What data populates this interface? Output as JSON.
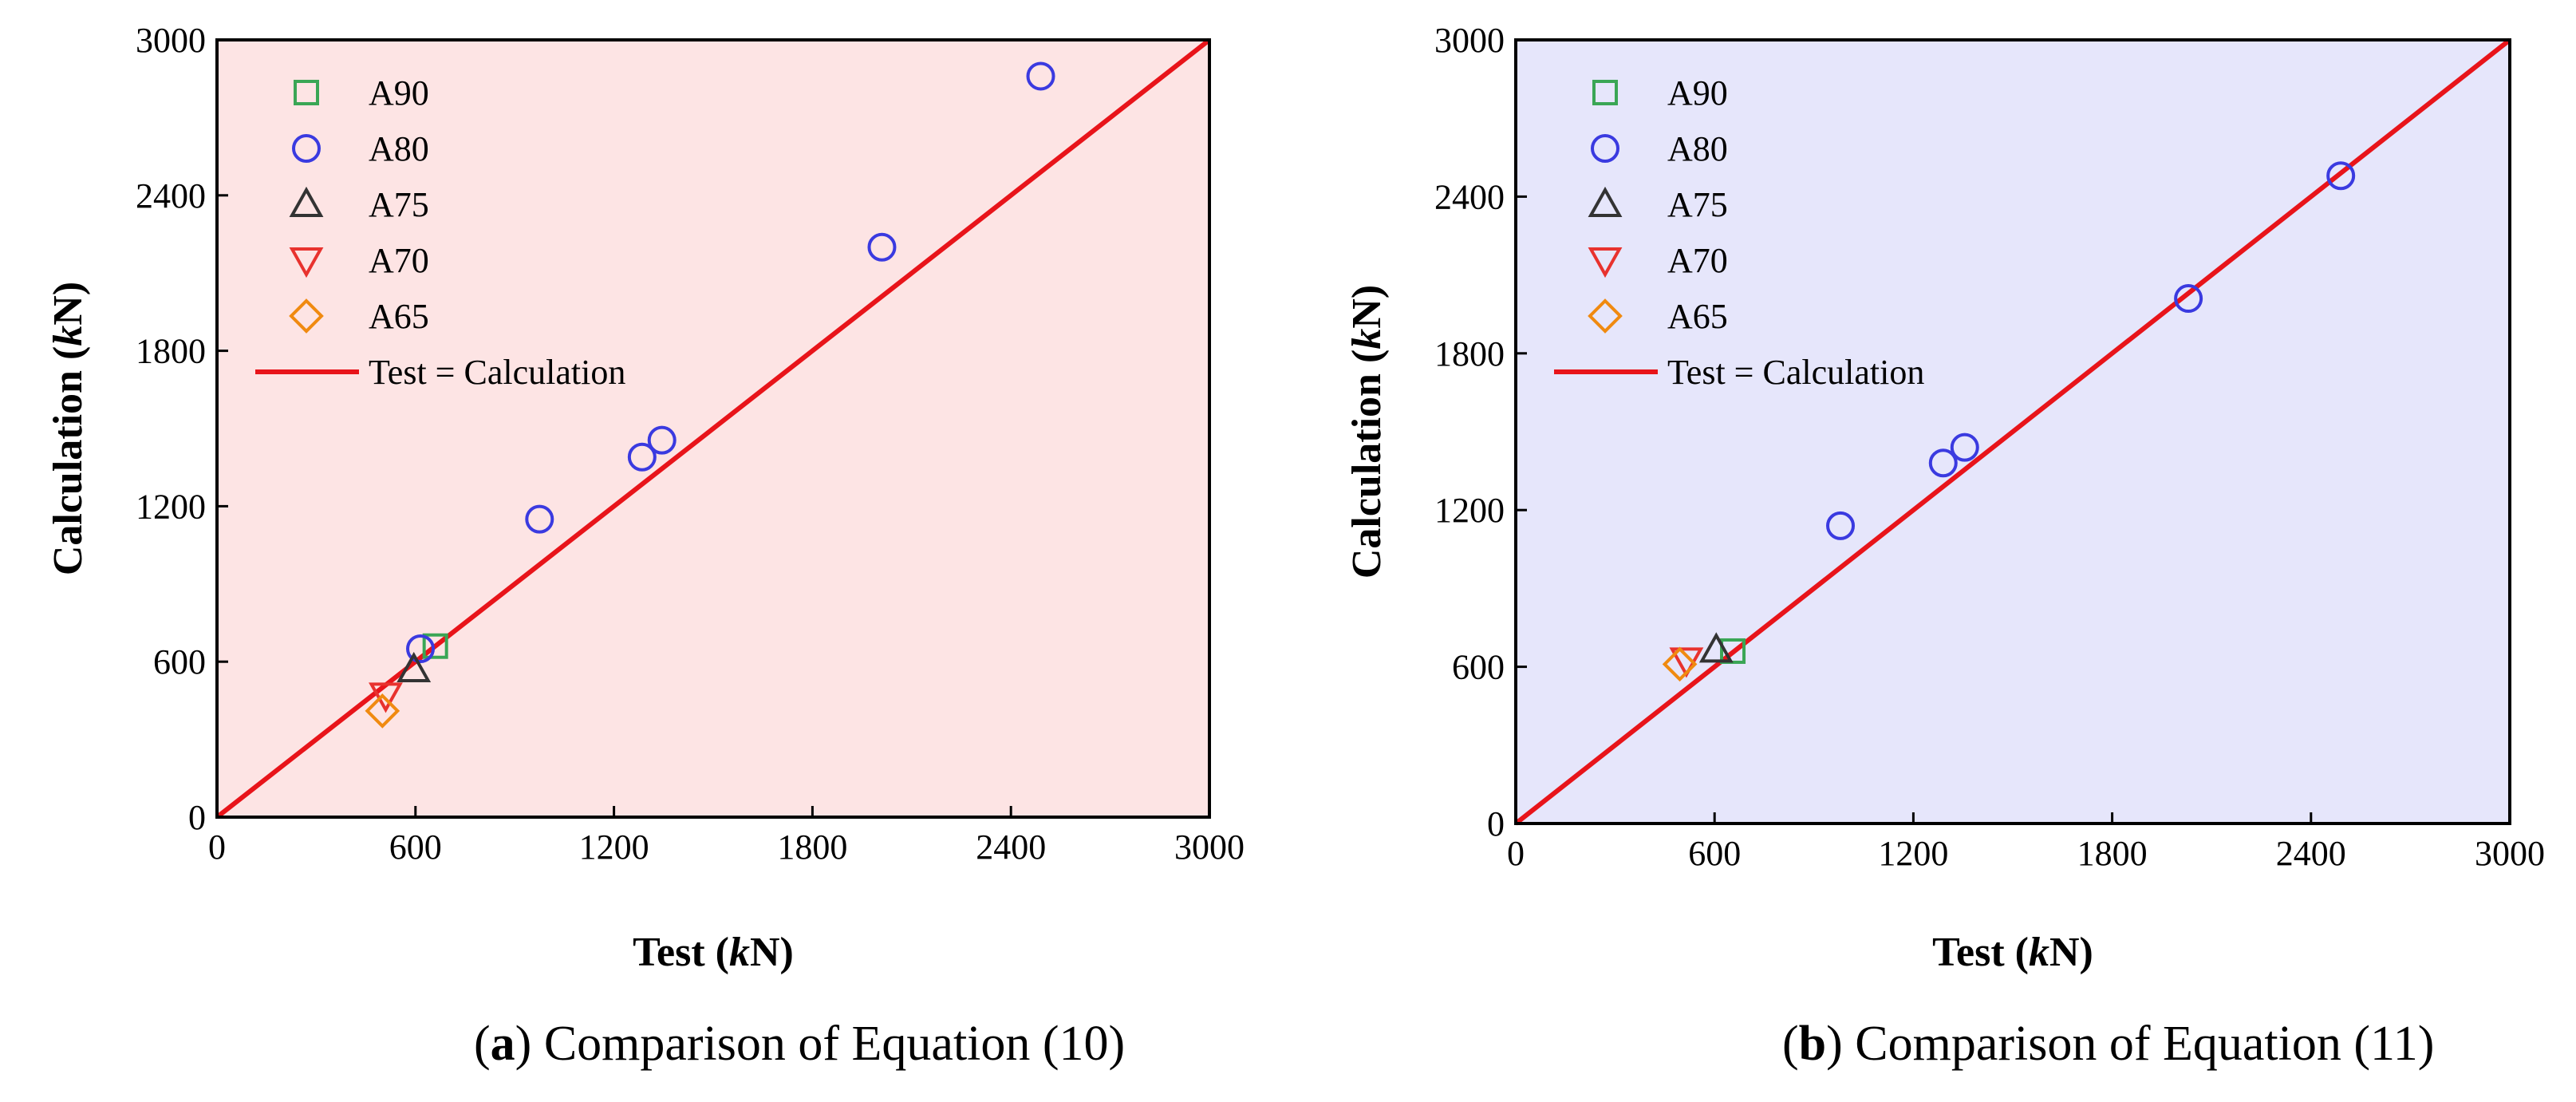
{
  "chart_data": [
    {
      "type": "scatter",
      "panel_label": "a",
      "caption": "Comparison of Equation (10)",
      "xlabel_text": "Test (",
      "xlabel_unit_italic": "k",
      "xlabel_unit_rest": "N",
      "xlabel_close": ")",
      "ylabel_text": "Calculation (",
      "ylabel_unit_italic": "k",
      "ylabel_unit_rest": "N",
      "ylabel_close": ")",
      "xlim": [
        0,
        3000
      ],
      "ylim": [
        0,
        3000
      ],
      "xticks": [
        0,
        600,
        1200,
        1800,
        2400,
        3000
      ],
      "yticks": [
        0,
        600,
        1200,
        1800,
        2400,
        3000
      ],
      "background_color": "#fde4e4",
      "grid": false,
      "legend_position": "top-left",
      "series": [
        {
          "name": "A90",
          "marker": "square",
          "color": "#3aa655",
          "points": [
            [
              660,
              660
            ]
          ]
        },
        {
          "name": "A80",
          "marker": "circle",
          "color": "#3a3ae0",
          "points": [
            [
              615,
              650
            ],
            [
              975,
              1150
            ],
            [
              1285,
              1390
            ],
            [
              1345,
              1455
            ],
            [
              2010,
              2200
            ],
            [
              2490,
              2860
            ]
          ]
        },
        {
          "name": "A75",
          "marker": "triangle-up",
          "color": "#333333",
          "points": [
            [
              595,
              570
            ]
          ]
        },
        {
          "name": "A70",
          "marker": "triangle-down",
          "color": "#e8322e",
          "points": [
            [
              510,
              470
            ]
          ]
        },
        {
          "name": "A65",
          "marker": "diamond",
          "color": "#f08a10",
          "points": [
            [
              500,
              410
            ]
          ]
        }
      ],
      "reference_line": {
        "name": "Test = Calculation",
        "color": "#e8141a",
        "x": [
          0,
          3000
        ],
        "y": [
          0,
          3000
        ]
      }
    },
    {
      "type": "scatter",
      "panel_label": "b",
      "caption": "Comparison of Equation (11)",
      "xlabel_text": "Test (",
      "xlabel_unit_italic": "k",
      "xlabel_unit_rest": "N",
      "xlabel_close": ")",
      "ylabel_text": "Calculation (",
      "ylabel_unit_italic": "k",
      "ylabel_unit_rest": "N",
      "ylabel_close": ")",
      "xlim": [
        0,
        3000
      ],
      "ylim": [
        0,
        3000
      ],
      "xticks": [
        0,
        600,
        1200,
        1800,
        2400,
        3000
      ],
      "yticks": [
        0,
        600,
        1200,
        1800,
        2400,
        3000
      ],
      "background_color": "#e6e6fb",
      "grid": false,
      "legend_position": "top-left",
      "series": [
        {
          "name": "A90",
          "marker": "square",
          "color": "#3aa655",
          "points": [
            [
              655,
              660
            ]
          ]
        },
        {
          "name": "A80",
          "marker": "circle",
          "color": "#3a3ae0",
          "points": [
            [
              980,
              1140
            ],
            [
              1290,
              1380
            ],
            [
              1355,
              1440
            ],
            [
              2030,
              2010
            ],
            [
              2490,
              2480
            ]
          ]
        },
        {
          "name": "A75",
          "marker": "triangle-up",
          "color": "#333333",
          "points": [
            [
              605,
              665
            ]
          ]
        },
        {
          "name": "A70",
          "marker": "triangle-down",
          "color": "#e8322e",
          "points": [
            [
              515,
              625
            ]
          ]
        },
        {
          "name": "A65",
          "marker": "diamond",
          "color": "#f08a10",
          "points": [
            [
              495,
              610
            ]
          ]
        }
      ],
      "reference_line": {
        "name": "Test = Calculation",
        "color": "#e8141a",
        "x": [
          0,
          3000
        ],
        "y": [
          0,
          3000
        ]
      }
    }
  ]
}
